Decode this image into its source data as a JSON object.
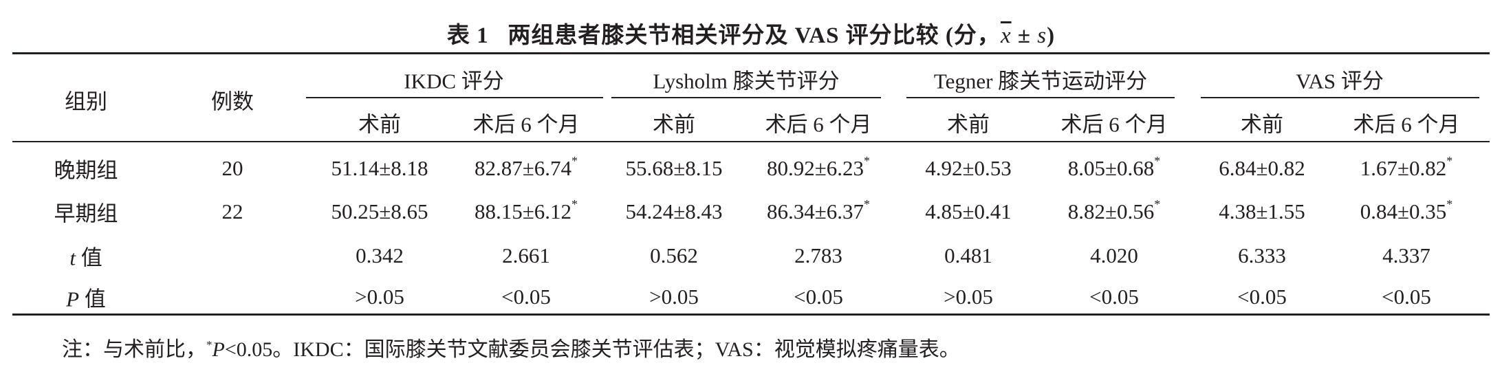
{
  "caption": {
    "label": "表 1",
    "text": "两组患者膝关节相关评分及 VAS 评分比较 (分，",
    "mean_symbol": "x",
    "pm": "±",
    "sd_symbol": "s",
    "close": ")"
  },
  "table": {
    "headers": {
      "group": "组别",
      "n": "例数",
      "ikdc": "IKDC 评分",
      "lysholm": "Lysholm 膝关节评分",
      "tegner": "Tegner 膝关节运动评分",
      "vas": "VAS 评分",
      "pre": "术前",
      "post": "术后 6 个月"
    },
    "rows": [
      {
        "group": "晚期组",
        "n": "20",
        "cells": [
          {
            "value": "51.14±8.18",
            "mark": ""
          },
          {
            "value": "82.87±6.74",
            "mark": "*"
          },
          {
            "value": "55.68±8.15",
            "mark": ""
          },
          {
            "value": "80.92±6.23",
            "mark": "*"
          },
          {
            "value": "4.92±0.53",
            "mark": ""
          },
          {
            "value": "8.05±0.68",
            "mark": "*"
          },
          {
            "value": "6.84±0.82",
            "mark": ""
          },
          {
            "value": "1.67±0.82",
            "mark": "*"
          }
        ]
      },
      {
        "group": "早期组",
        "n": "22",
        "cells": [
          {
            "value": "50.25±8.65",
            "mark": ""
          },
          {
            "value": "88.15±6.12",
            "mark": "*"
          },
          {
            "value": "54.24±8.43",
            "mark": ""
          },
          {
            "value": "86.34±6.37",
            "mark": "*"
          },
          {
            "value": "4.85±0.41",
            "mark": ""
          },
          {
            "value": "8.82±0.56",
            "mark": "*"
          },
          {
            "value": "4.38±1.55",
            "mark": ""
          },
          {
            "value": "0.84±0.35",
            "mark": "*"
          }
        ]
      }
    ],
    "t_row": {
      "symbol": "t",
      "label": "值",
      "values": [
        "0.342",
        "2.661",
        "0.562",
        "2.783",
        "0.481",
        "4.020",
        "6.333",
        "4.337"
      ]
    },
    "p_row": {
      "symbol": "P",
      "label": "值",
      "values": [
        ">0.05",
        "<0.05",
        ">0.05",
        "<0.05",
        ">0.05",
        "<0.05",
        "<0.05",
        "<0.05"
      ]
    }
  },
  "note": {
    "prefix": "注：与术前比，",
    "mark": "*",
    "p_symbol": "P",
    "rest": "<0.05。IKDC：国际膝关节文献委员会膝关节评估表；VAS：视觉模拟疼痛量表。"
  }
}
